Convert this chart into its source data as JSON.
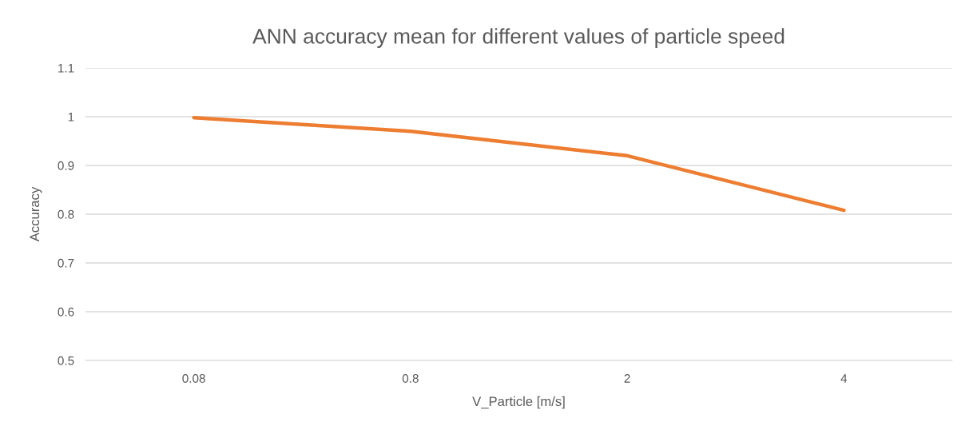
{
  "chart_data": {
    "type": "line",
    "title": "ANN accuracy mean for different values of particle speed",
    "xlabel": "V_Particle [m/s]",
    "ylabel": "Accuracy",
    "categories": [
      "0.08",
      "0.8",
      "2",
      "4"
    ],
    "series": [
      {
        "color": "#ed7d31",
        "values": [
          0.998,
          0.97,
          0.92,
          0.808
        ]
      }
    ],
    "ylim": [
      0.5,
      1.1
    ],
    "yticks": [
      0.5,
      0.6,
      0.7,
      0.8,
      0.9,
      1,
      1.1
    ],
    "grid": "y",
    "legend": false,
    "marker": "none",
    "line_style": "solid"
  }
}
